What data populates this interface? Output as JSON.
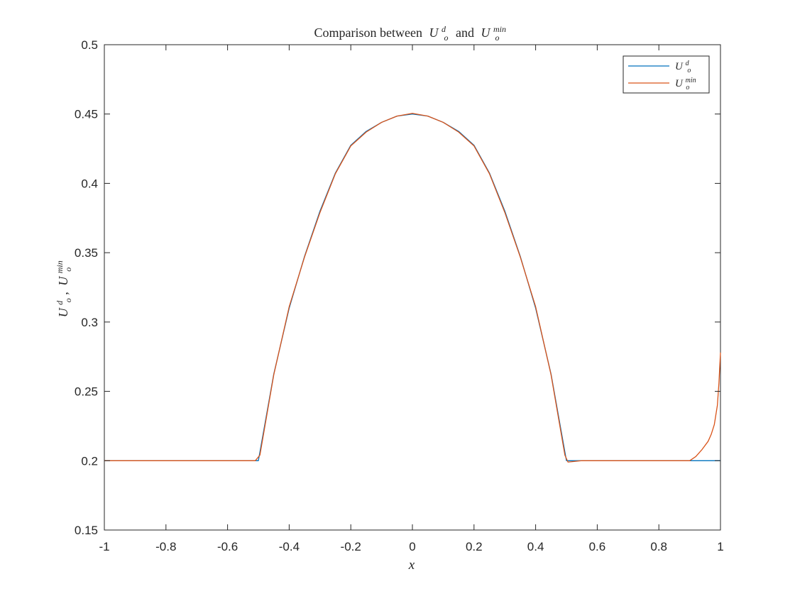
{
  "chart_data": {
    "type": "line",
    "title": {
      "text": "Comparison between",
      "var1": {
        "base": "U",
        "sub": "o",
        "sup": "d"
      },
      "conjunction": "and",
      "var2": {
        "base": "U",
        "sub": "o",
        "sup": "min"
      }
    },
    "xlabel": "x",
    "ylabel": {
      "var1": {
        "base": "U",
        "sub": "o",
        "sup": "d"
      },
      "separator": ",",
      "var2": {
        "base": "U",
        "sub": "o",
        "sup": "min"
      }
    },
    "xlim": [
      -1,
      1
    ],
    "ylim": [
      0.15,
      0.5
    ],
    "x_ticks": [
      "-1",
      "-0.8",
      "-0.6",
      "-0.4",
      "-0.2",
      "0",
      "0.2",
      "0.4",
      "0.6",
      "0.8",
      "1"
    ],
    "y_ticks": [
      "0.15",
      "0.2",
      "0.25",
      "0.3",
      "0.35",
      "0.4",
      "0.45",
      "0.5"
    ],
    "grid": false,
    "legend_position": "top-right",
    "series": [
      {
        "name": {
          "base": "U",
          "sub": "o",
          "sup": "d"
        },
        "color": "#0072BD",
        "x": [
          -1.0,
          -0.55,
          -0.5,
          -0.45,
          -0.4,
          -0.35,
          -0.3,
          -0.25,
          -0.2,
          -0.15,
          -0.1,
          -0.05,
          0.0,
          0.05,
          0.1,
          0.15,
          0.2,
          0.25,
          0.3,
          0.35,
          0.4,
          0.45,
          0.5,
          0.55,
          0.9,
          1.0
        ],
        "y": [
          0.2,
          0.2,
          0.2,
          0.2625,
          0.31,
          0.3475,
          0.38,
          0.4075,
          0.4275,
          0.4375,
          0.444,
          0.4485,
          0.45,
          0.4485,
          0.444,
          0.4375,
          0.4275,
          0.4075,
          0.38,
          0.3475,
          0.31,
          0.2625,
          0.2,
          0.2,
          0.2,
          0.2
        ]
      },
      {
        "name": {
          "base": "U",
          "sub": "o",
          "sup": "min"
        },
        "color": "#D95319",
        "x": [
          -1.0,
          -0.55,
          -0.51,
          -0.495,
          -0.45,
          -0.4,
          -0.35,
          -0.3,
          -0.25,
          -0.2,
          -0.15,
          -0.1,
          -0.05,
          0.0,
          0.05,
          0.1,
          0.15,
          0.2,
          0.25,
          0.3,
          0.35,
          0.4,
          0.45,
          0.495,
          0.505,
          0.55,
          0.9,
          0.92,
          0.94,
          0.96,
          0.97,
          0.98,
          0.99,
          0.995,
          1.0
        ],
        "y": [
          0.2,
          0.2,
          0.2,
          0.204,
          0.262,
          0.311,
          0.347,
          0.379,
          0.407,
          0.427,
          0.437,
          0.444,
          0.4485,
          0.4505,
          0.4485,
          0.444,
          0.437,
          0.427,
          0.407,
          0.379,
          0.347,
          0.311,
          0.262,
          0.204,
          0.199,
          0.2,
          0.2,
          0.203,
          0.208,
          0.214,
          0.219,
          0.226,
          0.24,
          0.256,
          0.278
        ]
      }
    ]
  }
}
